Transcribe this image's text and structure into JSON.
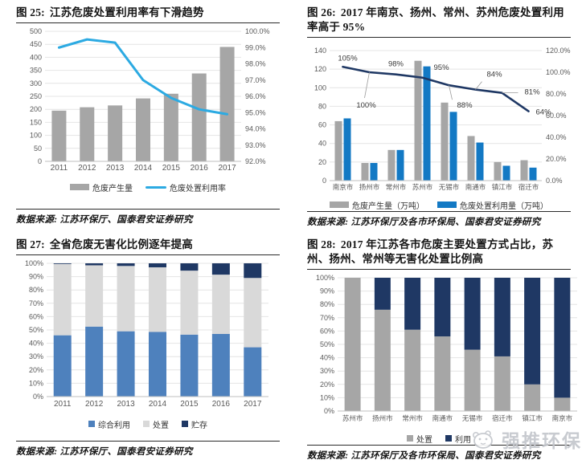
{
  "colors": {
    "gray-bar": "#a6a6a6",
    "cyan-line": "#2caae2",
    "blue-bar": "#1379c4",
    "navy": "#1f3864",
    "steel-blue": "#4e81bd",
    "light-gray-bar": "#d9d9d9",
    "grid": "#e4e4e4",
    "tick-text": "#595959",
    "title-text": "#151515",
    "rule": "#2b2b2b",
    "watermark": "#c3c6cc"
  },
  "panels": {
    "fig25": {
      "label": "图 25:",
      "title": "江苏危废处置利用率有下滑趋势",
      "source": "数据来源: 江苏环保厅、国泰君安证券研究"
    },
    "fig26": {
      "label": "图 26:",
      "title": "2017 年南京、扬州、常州、苏州危废处置利用率高于 95%",
      "source": "数据来源: 江苏环保厅及各市环保局、国泰君安证券研究"
    },
    "fig27": {
      "label": "图 27:",
      "title": "全省危废无害化比例逐年提高",
      "source": "数据来源: 江苏环保厅、国泰君安证券研究"
    },
    "fig28": {
      "label": "图 28:",
      "title": "2017 年江苏各市危废主要处置方式占比，苏州、扬州、常州等无害化处置比例高",
      "source": "数据来源: 江苏环保厅及各市环保局、国泰君安证券研究"
    }
  },
  "watermark": {
    "text": "强推环保"
  },
  "chart_data": [
    {
      "id": "fig25",
      "type": "bar",
      "subtype": "combo_bar_line",
      "title": "江苏危废处置利用率有下滑趋势",
      "categories": [
        "2011",
        "2012",
        "2013",
        "2014",
        "2015",
        "2016",
        "2017"
      ],
      "series": [
        {
          "name": "危废产生量",
          "type": "bar",
          "axis": "left",
          "values": [
            195,
            208,
            215,
            242,
            260,
            338,
            440
          ]
        },
        {
          "name": "危废处置利用率",
          "type": "line",
          "axis": "right",
          "values": [
            99.0,
            99.5,
            99.3,
            97.0,
            95.9,
            95.2,
            94.9
          ]
        }
      ],
      "left_axis": {
        "min": 0,
        "max": 500,
        "step": 50
      },
      "right_axis": {
        "min": 92,
        "max": 100,
        "step": 1,
        "suffix": "%",
        "decimals": 1
      },
      "grid": true,
      "legend_position": "bottom"
    },
    {
      "id": "fig26",
      "type": "bar",
      "subtype": "combo_bar_line",
      "title": "2017 年南京、扬州、常州、苏州危废处置利用率高于 95%",
      "categories": [
        "南京市",
        "扬州市",
        "常州市",
        "苏州市",
        "无锡市",
        "南通市",
        "镇江市",
        "宿迁市"
      ],
      "series": [
        {
          "name": "危废产生量（万吨）",
          "type": "bar",
          "axis": "left",
          "values": [
            64,
            19,
            33,
            129,
            84,
            48,
            20,
            22
          ]
        },
        {
          "name": "危废处置利用量（万吨）",
          "type": "bar",
          "axis": "left",
          "values": [
            67,
            19,
            33,
            123,
            74,
            41,
            16,
            14
          ]
        },
        {
          "name": "危废处置利用率",
          "type": "line",
          "axis": "right",
          "values": [
            105,
            100,
            98,
            95,
            88,
            84,
            81,
            64
          ],
          "labels": [
            "105%",
            "100%",
            "98%",
            "95%",
            "88%",
            "84%",
            "81%",
            "64%"
          ]
        }
      ],
      "left_axis": {
        "min": 0,
        "max": 140,
        "step": 20
      },
      "right_axis": {
        "min": 0,
        "max": 120,
        "step": 20,
        "suffix": "%",
        "decimals": 1
      },
      "grid": true,
      "legend_position": "bottom"
    },
    {
      "id": "fig27",
      "type": "bar",
      "subtype": "stacked_100",
      "title": "全省危废无害化比例逐年提高",
      "categories": [
        "2011",
        "2012",
        "2013",
        "2014",
        "2015",
        "2016",
        "2017"
      ],
      "series": [
        {
          "name": "综合利用",
          "values": [
            46,
            52.5,
            49,
            48.5,
            46.5,
            47,
            37
          ]
        },
        {
          "name": "处置",
          "values": [
            53.5,
            46,
            49,
            48.5,
            48,
            44.5,
            52
          ]
        },
        {
          "name": "贮存",
          "values": [
            0.5,
            1.5,
            2,
            3,
            5.5,
            8.5,
            11
          ]
        }
      ],
      "y_axis": {
        "min": 0,
        "max": 100,
        "step": 10,
        "suffix": "%"
      },
      "grid": true,
      "legend_position": "bottom"
    },
    {
      "id": "fig28",
      "type": "bar",
      "subtype": "stacked_100",
      "title": "2017 年江苏各市危废主要处置方式占比",
      "categories": [
        "苏州市",
        "扬州市",
        "常州市",
        "南通市",
        "无锡市",
        "宿迁市",
        "镇江市",
        "南京市"
      ],
      "series": [
        {
          "name": "处置",
          "values": [
            100,
            76,
            61,
            56,
            46,
            41,
            20,
            10
          ]
        },
        {
          "name": "利用",
          "values": [
            0,
            24,
            39,
            44,
            54,
            59,
            80,
            90
          ]
        }
      ],
      "y_axis": {
        "min": 0,
        "max": 100,
        "step": 10,
        "suffix": "%"
      },
      "grid": true,
      "legend_position": "bottom"
    }
  ]
}
